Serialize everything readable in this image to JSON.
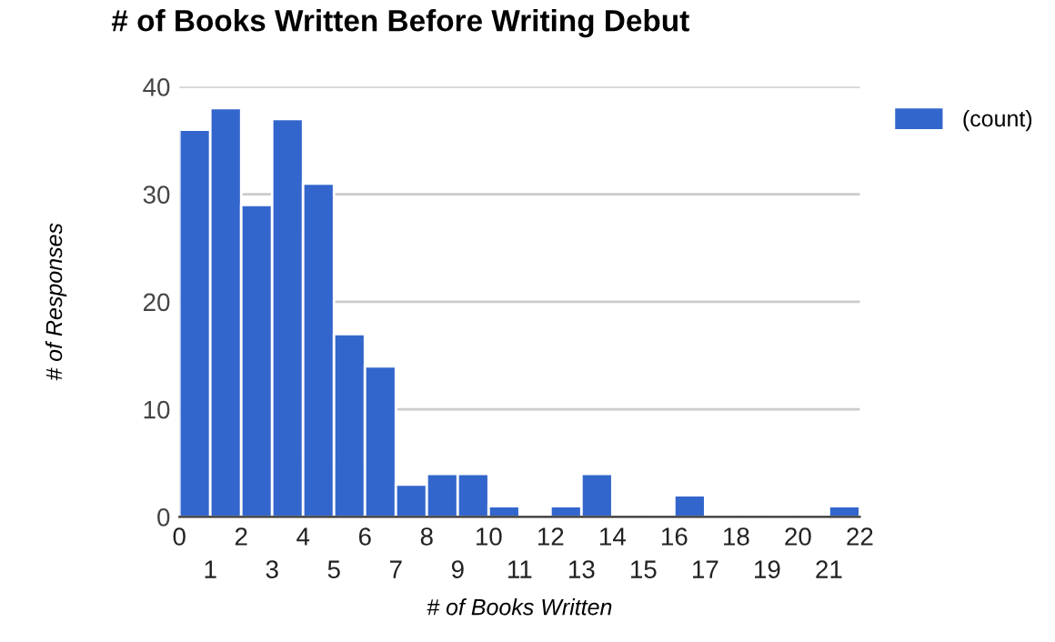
{
  "chart_data": {
    "type": "histogram",
    "title": "# of Books Written Before Writing Debut",
    "xlabel": "# of Books Written",
    "ylabel": "# of Responses",
    "bins": [
      0,
      1,
      2,
      3,
      4,
      5,
      6,
      7,
      8,
      9,
      10,
      11,
      12,
      13,
      14,
      15,
      16,
      17,
      18,
      19,
      20,
      21,
      22
    ],
    "series": [
      {
        "name": "(count)",
        "color": "#3366cc",
        "values": [
          36,
          38,
          29,
          37,
          31,
          17,
          14,
          3,
          4,
          4,
          1,
          0,
          1,
          4,
          0,
          0,
          2,
          0,
          0,
          0,
          0,
          1
        ]
      }
    ],
    "xlim": [
      0,
      22
    ],
    "xticks": [
      0,
      2,
      4,
      6,
      8,
      10,
      12,
      14,
      16,
      18,
      20,
      22
    ],
    "x2lim": [
      0,
      22
    ],
    "x2ticks": [
      1,
      3,
      5,
      7,
      9,
      11,
      13,
      15,
      17,
      19,
      21
    ],
    "ylim": [
      0,
      40
    ],
    "yticks": [
      0,
      10,
      20,
      30,
      40
    ],
    "grid": "y",
    "legend": "top right"
  }
}
